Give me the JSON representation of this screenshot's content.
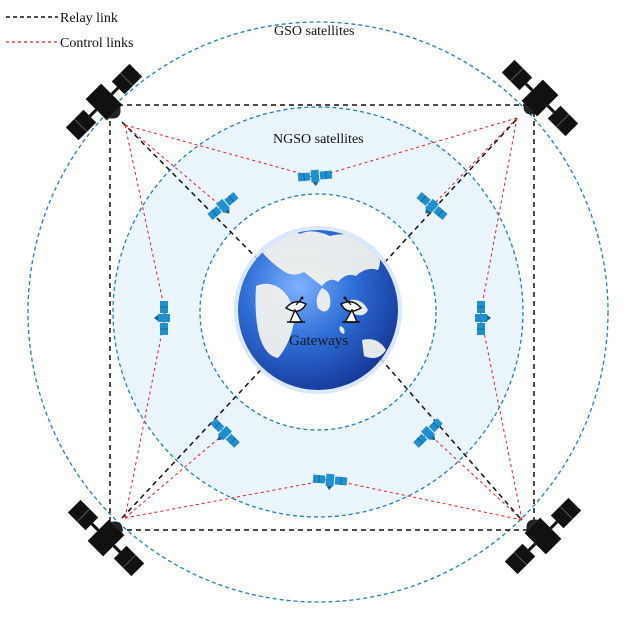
{
  "legend": {
    "relay_label": "Relay link",
    "control_label": "Control links"
  },
  "labels": {
    "gso": "GSO satellites",
    "ngso": "NGSO satellites",
    "gateways": "Gateways"
  },
  "colors": {
    "relay_link": "#111111",
    "control_link": "#dd2222",
    "orbit_ring": "#1f7fc0",
    "ngso_band": "#e9f4fb",
    "ngso_satellite": "#1f8fd0",
    "gso_satellite": "#111111",
    "earth_ocean": "#2f6fd8",
    "earth_land": "#f2f2ee"
  },
  "icons": {
    "gso_satellite": "gso-satellite-icon",
    "ngso_satellite": "ngso-satellite-icon",
    "earth": "earth-globe-icon",
    "gateway": "satellite-dish-icon"
  }
}
